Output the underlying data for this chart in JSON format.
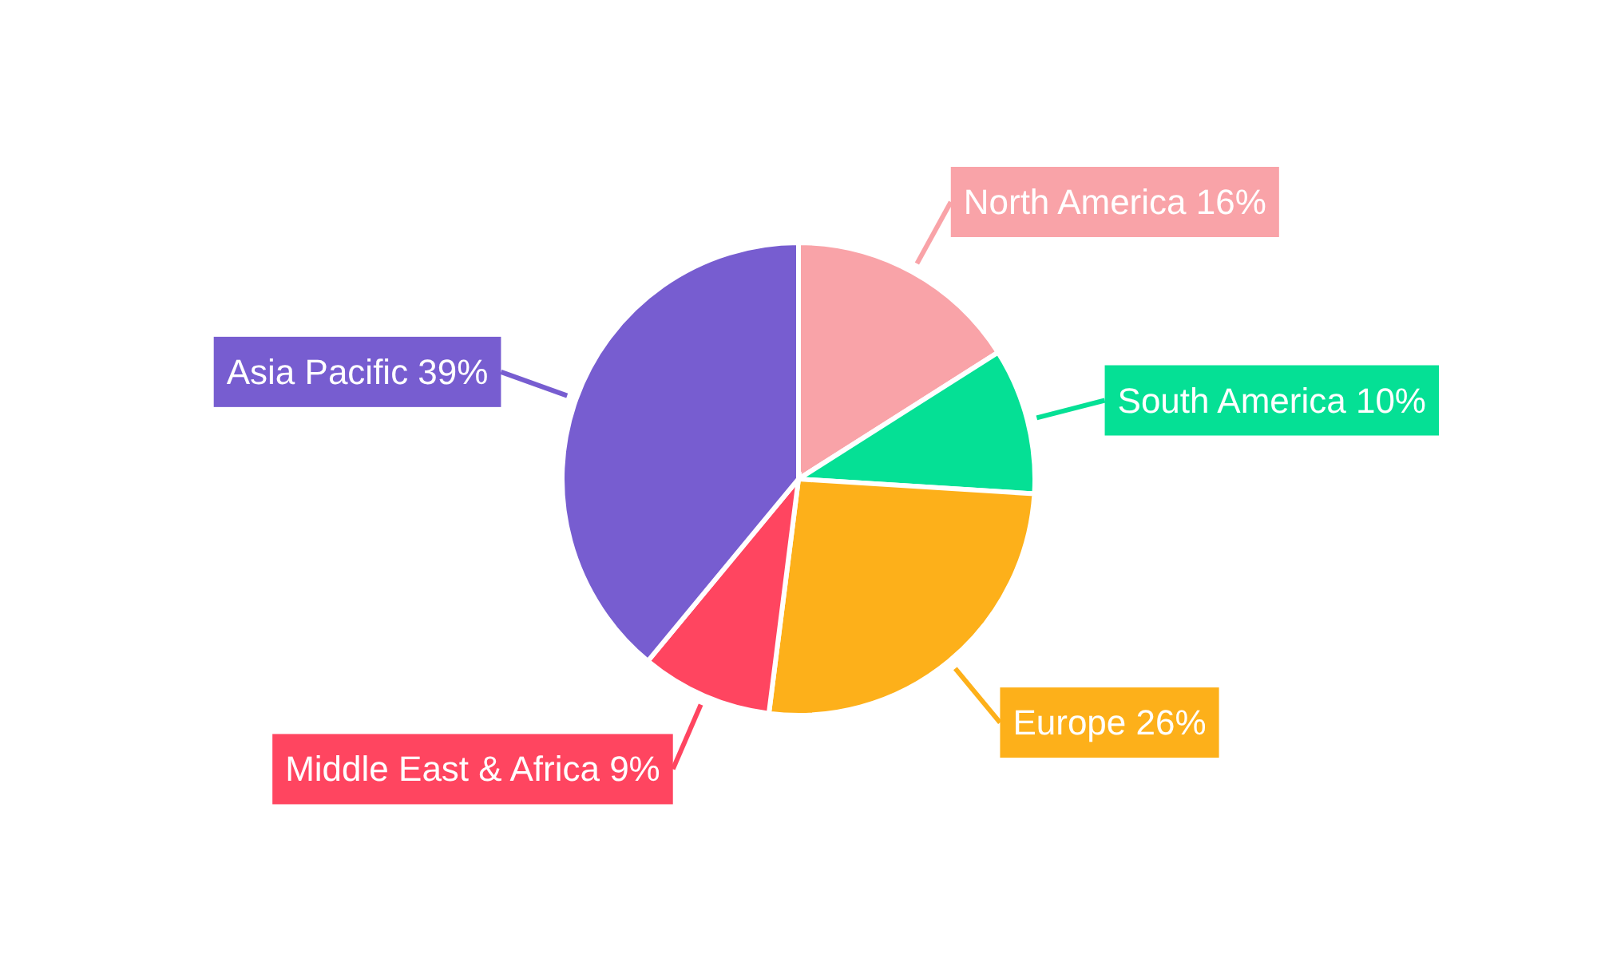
{
  "chart_data": {
    "type": "pie",
    "categories": [
      "North America",
      "South America",
      "Europe",
      "Middle East & Africa",
      "Asia Pacific"
    ],
    "values": [
      16,
      10,
      26,
      9,
      39
    ],
    "value_labels": [
      "16%",
      "10%",
      "26%",
      "9%",
      "39%"
    ],
    "colors": [
      "#f9a3a8",
      "#05e095",
      "#fdb01a",
      "#ff4560",
      "#775dd0"
    ]
  }
}
